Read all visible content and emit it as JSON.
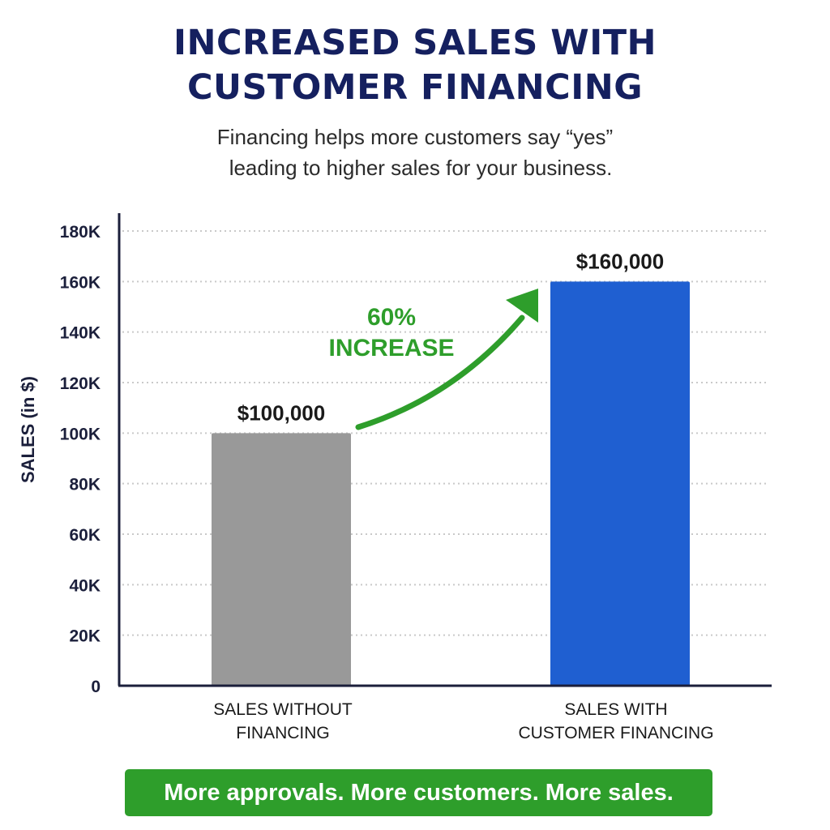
{
  "header": {
    "title_line_1": "INCREASED SALES WITH",
    "title_line_2": "CUSTOMER FINANCING",
    "subtitle_line_1": "Financing helps more customers say “yes”",
    "subtitle_line_2": "leading to higher sales for your business."
  },
  "chart_data": {
    "type": "bar",
    "categories": [
      [
        "SALES WITHOUT",
        "FINANCING"
      ],
      [
        "SALES WITH",
        "CUSTOMER FINANCING"
      ]
    ],
    "values": [
      100000,
      160000
    ],
    "value_labels": [
      "$100,000",
      "$160,000"
    ],
    "bar_colors": [
      "#999999",
      "#1f5fd1"
    ],
    "ylabel": "SALES (in $)",
    "ylim": [
      0,
      180000
    ],
    "y_ticks": [
      0,
      20000,
      40000,
      60000,
      80000,
      100000,
      120000,
      140000,
      160000,
      180000
    ],
    "y_tick_labels": [
      "0",
      "20K",
      "40K",
      "60K",
      "80K",
      "100K",
      "120K",
      "140K",
      "160K",
      "180K"
    ],
    "grid": true,
    "annotation": {
      "line_1": "60%",
      "line_2": "INCREASE",
      "color": "#2e9e2b"
    }
  },
  "footer": {
    "banner_text": "More approvals. More customers. More sales.",
    "banner_color": "#2e9e2b"
  },
  "colors": {
    "title": "#15205f",
    "axis": "#1b1f3b",
    "grid": "#c9c9c9"
  }
}
